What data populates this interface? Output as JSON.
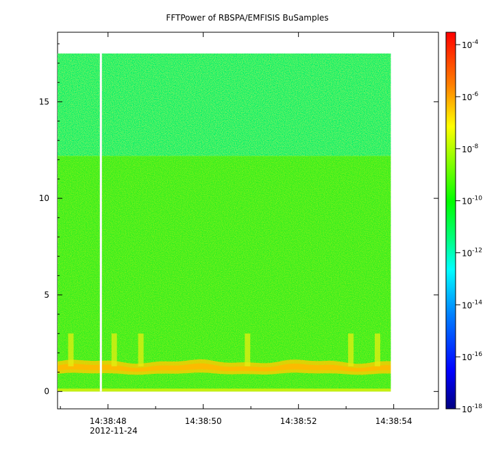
{
  "chart_data": {
    "type": "heatmap",
    "title": "FFTPower of RBSPA/EMFISIS  BuSamples",
    "xlabel": "",
    "ylabel": "",
    "x_date": "2012-11-24",
    "x_ticks": [
      "14:38:48",
      "14:38:50",
      "14:38:52",
      "14:38:54"
    ],
    "x_minor_ticks": [
      "14:38:47",
      "14:38:49",
      "14:38:51",
      "14:38:53"
    ],
    "x_range": [
      "14:38:46.94",
      "14:38:54.94"
    ],
    "data_time_range": [
      "14:38:46.94",
      "14:38:53.94"
    ],
    "y_range": [
      -0.9,
      18.6
    ],
    "y_ticks": [
      0,
      5,
      10,
      15
    ],
    "y_max_data": 17.5,
    "gap_time": "14:38:47.85",
    "colorbar": {
      "scale": "log",
      "range": [
        "1e-18",
        "3e-4"
      ],
      "ticks": [
        {
          "base": "10",
          "exp": "-4",
          "value": 0.0001
        },
        {
          "base": "10",
          "exp": "-6",
          "value": 1e-06
        },
        {
          "base": "10",
          "exp": "-8",
          "value": 1e-08
        },
        {
          "base": "10",
          "exp": "-10",
          "value": 1e-10
        },
        {
          "base": "10",
          "exp": "-12",
          "value": 1e-12
        },
        {
          "base": "10",
          "exp": "-14",
          "value": 1e-14
        },
        {
          "base": "10",
          "exp": "-16",
          "value": 1e-16
        },
        {
          "base": "10",
          "exp": "-18",
          "value": 1e-18
        }
      ],
      "colormap": [
        "#00007f",
        "#0000ff",
        "#0080ff",
        "#00ffff",
        "#00ff80",
        "#00ff00",
        "#80ff00",
        "#ffff00",
        "#ff8000",
        "#ff0000"
      ]
    },
    "bands": [
      {
        "name": "",
        "y": [
          12.2,
          17.5
        ],
        "power": "1e-12"
      },
      {
        "name": "",
        "y": [
          0,
          12.2
        ],
        "power": "1e-10"
      },
      {
        "name": "",
        "y": [
          0.9,
          1.5
        ],
        "power": "1e-7"
      }
    ]
  }
}
